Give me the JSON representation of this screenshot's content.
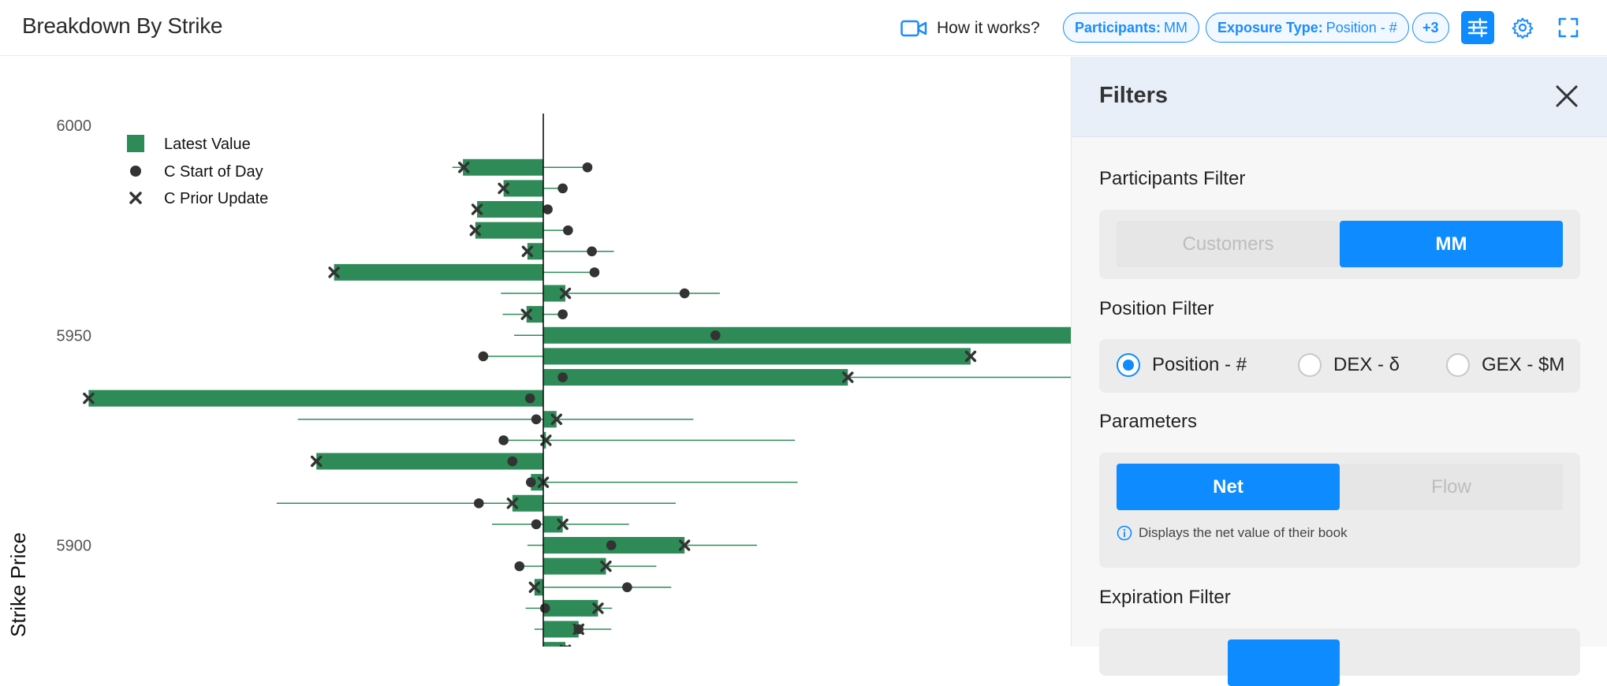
{
  "header": {
    "title": "Breakdown By Strike",
    "how_it_works": "How it works?",
    "participants_chip": {
      "key": "Participants:",
      "value": "MM"
    },
    "exposure_chip": {
      "key": "Exposure Type:",
      "value": "Position - #"
    },
    "more_chip": "+3",
    "icons": [
      "video-icon",
      "sliders-icon",
      "gear-icon",
      "expand-icon"
    ]
  },
  "panel": {
    "title": "Filters",
    "participants": {
      "title": "Participants Filter",
      "options": [
        "Customers",
        "MM"
      ],
      "selected": "MM"
    },
    "position": {
      "title": "Position Filter",
      "options": [
        "Position - #",
        "DEX - δ",
        "GEX - $M"
      ],
      "selected": "Position - #"
    },
    "parameters": {
      "title": "Parameters",
      "options": [
        "Net",
        "Flow"
      ],
      "selected": "Net",
      "hint": "Displays the net value of their book"
    },
    "expiration": {
      "title": "Expiration Filter"
    }
  },
  "colors": {
    "accent": "#0d8bff",
    "bar": "#2e8b57",
    "marker": "#333333"
  },
  "chart_data": {
    "type": "bar",
    "orientation": "horizontal",
    "ylabel": "Strike Price",
    "yticks": [
      6000,
      5950,
      5900
    ],
    "legend": [
      "Latest Value",
      "C Start of Day",
      "C Prior Update"
    ],
    "legend_placement": "top-left",
    "series_note_order": [
      "strike",
      "latest",
      "start_of_day",
      "prior_update",
      "range_low",
      "range_high"
    ],
    "rows": [
      [
        5990,
        -91,
        50,
        -90,
        -103,
        50
      ],
      [
        5985,
        -45,
        22,
        -45,
        -45,
        22
      ],
      [
        5980,
        -75,
        5,
        -75,
        -75,
        5
      ],
      [
        5975,
        -77,
        28,
        -77,
        -77,
        28
      ],
      [
        5970,
        -18,
        55,
        -18,
        -18,
        80
      ],
      [
        5965,
        -237,
        58,
        -237,
        -237,
        58
      ],
      [
        5960,
        25,
        160,
        25,
        -48,
        200
      ],
      [
        5955,
        -19,
        22,
        -19,
        -46,
        22
      ],
      [
        5950,
        605,
        195,
        605,
        -33,
        605
      ],
      [
        5945,
        484,
        -68,
        484,
        -68,
        484
      ],
      [
        5940,
        345,
        22,
        345,
        22,
        605
      ],
      [
        5935,
        -515,
        -15,
        -515,
        -515,
        -15
      ],
      [
        5930,
        15,
        -8,
        15,
        -278,
        170
      ],
      [
        5925,
        3,
        -45,
        3,
        -45,
        285
      ],
      [
        5920,
        -257,
        -35,
        -257,
        -257,
        -35
      ],
      [
        5915,
        -14,
        -14,
        0,
        -14,
        288
      ],
      [
        5910,
        -35,
        -73,
        -35,
        -302,
        150
      ],
      [
        5905,
        22,
        -8,
        22,
        -58,
        97
      ],
      [
        5900,
        160,
        77,
        160,
        -18,
        242
      ],
      [
        5895,
        71,
        -27,
        71,
        -27,
        128
      ],
      [
        5890,
        -10,
        95,
        -10,
        -10,
        145
      ],
      [
        5885,
        62,
        2,
        62,
        -20,
        78
      ],
      [
        5880,
        40,
        40,
        40,
        -10,
        77
      ],
      [
        5875,
        25,
        25,
        25,
        25,
        25
      ]
    ],
    "xlim": [
      -515,
      605
    ],
    "ylim": [
      5872,
      6003
    ]
  }
}
